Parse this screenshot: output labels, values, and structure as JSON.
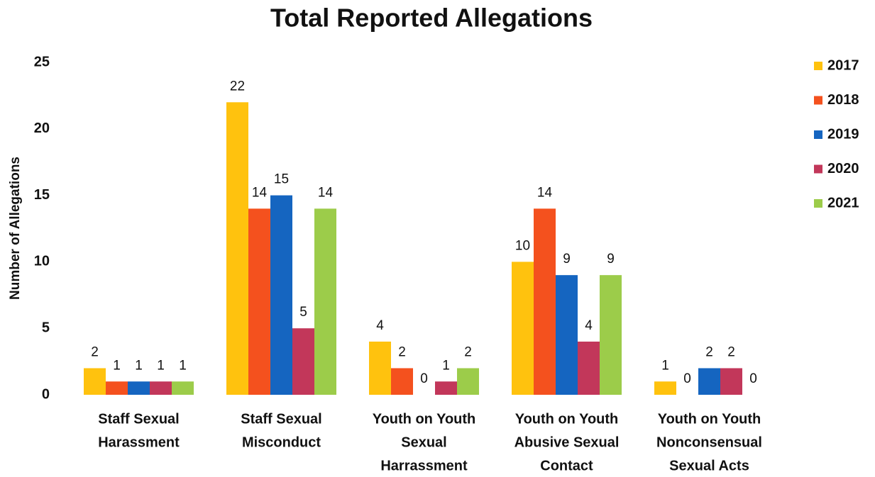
{
  "chart_data": {
    "type": "bar",
    "title": "Total Reported Allegations",
    "y_label": "Number of Allegations",
    "categories": [
      [
        "Staff Sexual",
        "Harassment"
      ],
      [
        "Staff Sexual",
        "Misconduct"
      ],
      [
        "Youth on Youth",
        "Sexual",
        "Harrassment"
      ],
      [
        "Youth on Youth",
        "Abusive Sexual",
        "Contact"
      ],
      [
        "Youth on Youth",
        "Nonconsensual",
        "Sexual Acts"
      ]
    ],
    "series": [
      {
        "name": "2017",
        "color": "#ffc20e",
        "values": [
          2,
          22,
          4,
          10,
          1
        ]
      },
      {
        "name": "2018",
        "color": "#f4511e",
        "values": [
          1,
          14,
          2,
          14,
          0
        ]
      },
      {
        "name": "2019",
        "color": "#1565c0",
        "values": [
          1,
          15,
          0,
          9,
          2
        ]
      },
      {
        "name": "2020",
        "color": "#c2375a",
        "values": [
          1,
          5,
          1,
          4,
          2
        ]
      },
      {
        "name": "2021",
        "color": "#9ccc4a",
        "values": [
          1,
          14,
          2,
          9,
          0
        ]
      }
    ],
    "ylim": [
      0,
      25
    ],
    "yticks": [
      0,
      5,
      10,
      15,
      20,
      25
    ],
    "grid": false,
    "legend": "right"
  }
}
